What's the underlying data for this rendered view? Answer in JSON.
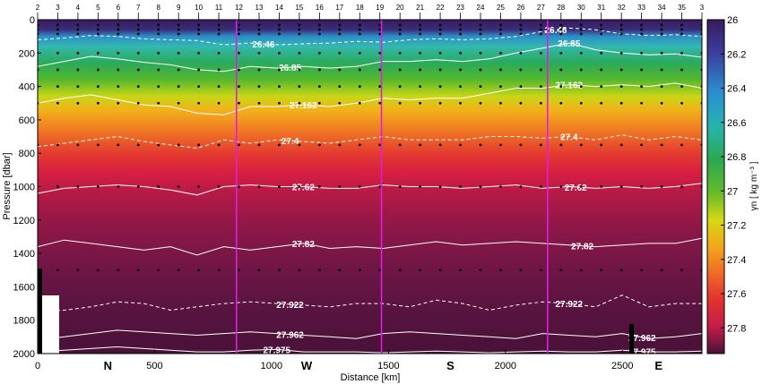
{
  "chart_data": {
    "type": "heatmap",
    "xlabel": "Distance [km]",
    "ylabel": "Pressure [dbar]",
    "colorbar_label": "γn [ kg m⁻³ ]",
    "xlim": [
      0,
      2840
    ],
    "ylim": [
      0,
      2000
    ],
    "y_reversed": true,
    "x_ticks": [
      "0",
      "500",
      "1000",
      "1500",
      "2000",
      "2500"
    ],
    "y_ticks": [
      "0",
      "200",
      "400",
      "600",
      "800",
      "1000",
      "1200",
      "1400",
      "1600",
      "1800",
      "2000"
    ],
    "colorbar_range": [
      26,
      27.95
    ],
    "colorbar_ticks": [
      "26",
      "26.2",
      "26.4",
      "26.6",
      "26.8",
      "27",
      "27.2",
      "27.4",
      "27.6",
      "27.8"
    ],
    "station_labels": [
      "2",
      "3",
      "4",
      "5",
      "6",
      "7",
      "8",
      "9",
      "10",
      "11",
      "12",
      "13",
      "14",
      "15",
      "16",
      "17",
      "18",
      "19",
      "20",
      "21",
      "22",
      "23",
      "24",
      "25",
      "26",
      "27",
      "28",
      "30",
      "31",
      "32",
      "33",
      "34",
      "35",
      "3"
    ],
    "section_labels": [
      {
        "label": "N",
        "x": 300
      },
      {
        "label": "W",
        "x": 1150
      },
      {
        "label": "S",
        "x": 1765
      },
      {
        "label": "E",
        "x": 2655
      }
    ],
    "section_dividers_km": [
      850,
      1470,
      2180
    ],
    "isopycnals": [
      {
        "value": 26.46,
        "style": "dashed",
        "label": "26.46",
        "pressure": [
          120,
          110,
          95,
          100,
          115,
          120,
          125,
          150,
          140,
          150,
          145,
          140,
          130,
          135,
          120,
          115,
          120,
          115,
          100,
          70,
          50,
          60,
          85,
          95,
          90,
          100
        ]
      },
      {
        "value": 26.85,
        "style": "solid",
        "label": "26.85",
        "pressure": [
          280,
          250,
          220,
          235,
          255,
          270,
          300,
          310,
          280,
          290,
          280,
          290,
          280,
          250,
          250,
          240,
          250,
          235,
          200,
          170,
          140,
          180,
          200,
          210,
          205,
          225
        ]
      },
      {
        "value": 27.162,
        "style": "solid",
        "label": "27.162",
        "pressure": [
          500,
          470,
          450,
          480,
          510,
          520,
          560,
          570,
          520,
          520,
          510,
          520,
          500,
          470,
          480,
          470,
          470,
          440,
          410,
          410,
          390,
          400,
          390,
          400,
          380,
          410
        ]
      },
      {
        "value": 27.4,
        "style": "dashed",
        "label": "27.4",
        "pressure": [
          760,
          740,
          720,
          700,
          730,
          750,
          770,
          720,
          740,
          720,
          730,
          740,
          720,
          700,
          720,
          720,
          720,
          700,
          700,
          710,
          700,
          720,
          690,
          720,
          700,
          720
        ]
      },
      {
        "value": 27.62,
        "style": "solid",
        "label": "27.62",
        "pressure": [
          1040,
          1010,
          1000,
          990,
          1000,
          1020,
          1050,
          1000,
          990,
          1000,
          1000,
          1010,
          1010,
          990,
          1000,
          1000,
          1010,
          1000,
          990,
          1010,
          1000,
          1010,
          1000,
          1010,
          1000,
          980
        ]
      },
      {
        "value": 27.82,
        "style": "solid",
        "label": "27.82",
        "pressure": [
          1360,
          1320,
          1340,
          1360,
          1380,
          1360,
          1410,
          1360,
          1380,
          1360,
          1340,
          1370,
          1360,
          1370,
          1350,
          1330,
          1350,
          1340,
          1330,
          1340,
          1350,
          1360,
          1350,
          1340,
          1340,
          1310
        ]
      },
      {
        "value": 27.922,
        "style": "dashed",
        "label": "27.922",
        "pressure": [
          1750,
          1740,
          1720,
          1690,
          1700,
          1740,
          1720,
          1700,
          1690,
          1700,
          1710,
          1720,
          1700,
          1700,
          1720,
          1680,
          1700,
          1740,
          1710,
          1690,
          1700,
          1720,
          1650,
          1720,
          1700,
          1700
        ]
      },
      {
        "value": 27.962,
        "style": "solid",
        "label": "27.962",
        "pressure": [
          1920,
          1900,
          1880,
          1860,
          1870,
          1880,
          1890,
          1880,
          1870,
          1880,
          1890,
          1900,
          1910,
          1880,
          1870,
          1880,
          1890,
          1900,
          1910,
          1880,
          1890,
          1900,
          1880,
          1910,
          1900,
          1880
        ]
      },
      {
        "value": 27.975,
        "style": "solid",
        "label": "27.975",
        "pressure": [
          1990,
          1980,
          1970,
          1960,
          1970,
          1980,
          1990,
          1990,
          1980,
          1975,
          1990,
          1990,
          1990,
          1995,
          1990,
          1985,
          1990,
          1995,
          1990,
          1985,
          1990,
          1990,
          1980,
          1990,
          1990,
          1985
        ]
      }
    ],
    "sample_depths_dbar": [
      200,
      300,
      400,
      500,
      750,
      1000,
      1500
    ]
  }
}
